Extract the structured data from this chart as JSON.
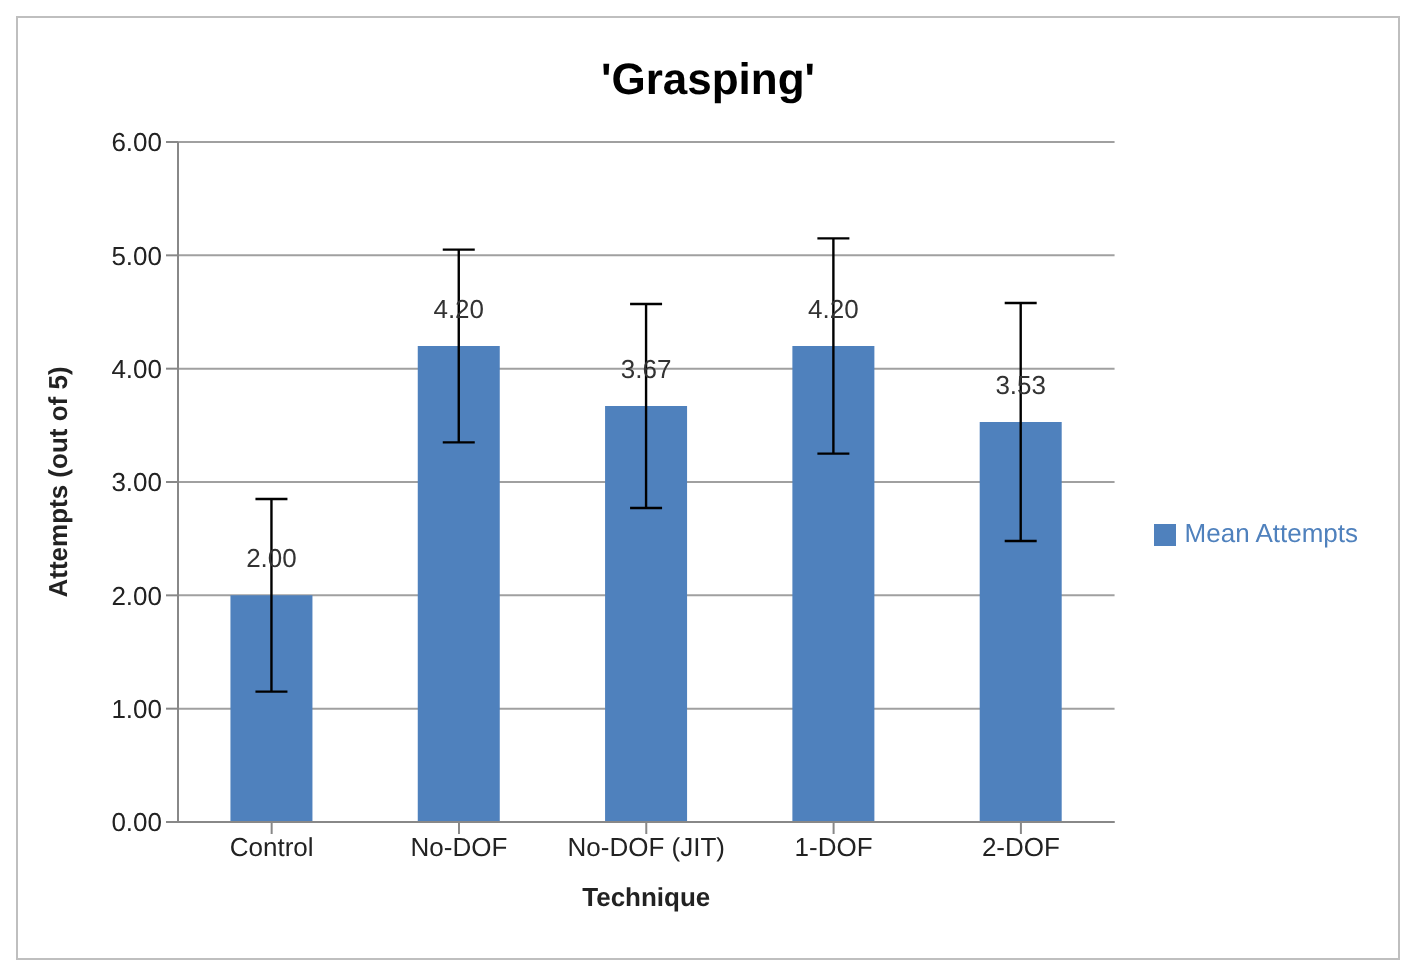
{
  "chart_data": {
    "type": "bar",
    "title": "'Grasping'",
    "xlabel": "Technique",
    "ylabel": "Attempts  (out of  5)",
    "categories": [
      "Control",
      "No-DOF",
      "No-DOF (JIT)",
      "1-DOF",
      "2-DOF"
    ],
    "series": [
      {
        "name": "Mean Attempts",
        "color": "#4f81bd",
        "values": [
          2.0,
          4.2,
          3.67,
          4.2,
          3.53
        ],
        "errors": [
          0.85,
          0.85,
          0.9,
          0.95,
          1.05
        ],
        "value_labels": [
          "2.00",
          "4.20",
          "3.67",
          "4.20",
          "3.53"
        ]
      }
    ],
    "ylim": [
      0,
      6
    ],
    "yticks": [
      {
        "value": 0,
        "label": "0.00"
      },
      {
        "value": 1,
        "label": "1.00"
      },
      {
        "value": 2,
        "label": "2.00"
      },
      {
        "value": 3,
        "label": "3.00"
      },
      {
        "value": 4,
        "label": "4.00"
      },
      {
        "value": 5,
        "label": "5.00"
      },
      {
        "value": 6,
        "label": "6.00"
      }
    ],
    "grid": "y",
    "legend": "right"
  }
}
